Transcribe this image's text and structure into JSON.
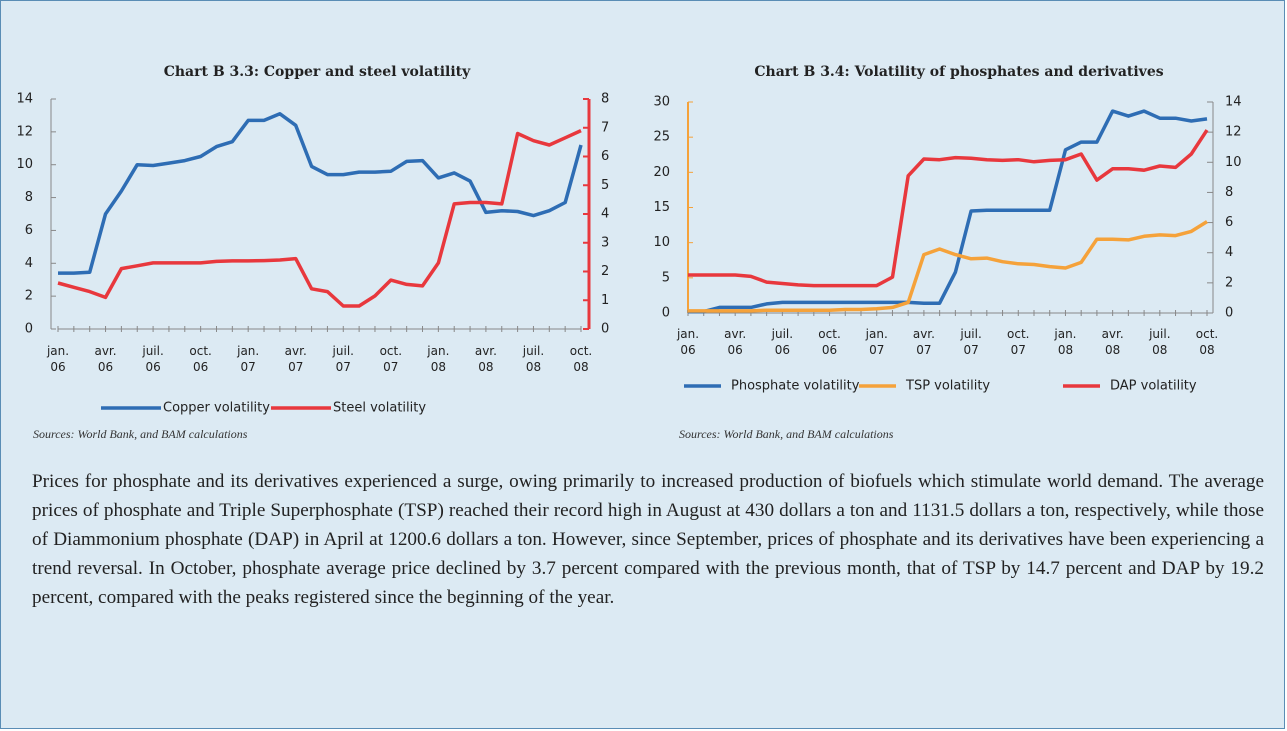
{
  "chart_data": [
    {
      "type": "line",
      "title": "Chart B 3.3: Copper and steel volatility",
      "categories": [
        "jan. 06",
        null,
        null,
        "avr. 06",
        null,
        null,
        "juil. 06",
        null,
        null,
        "oct. 06",
        null,
        null,
        "jan. 07",
        null,
        null,
        "avr. 07",
        null,
        null,
        "juil. 07",
        null,
        null,
        "oct. 07",
        null,
        null,
        "jan. 08",
        null,
        null,
        "avr. 08",
        null,
        null,
        "juil. 08",
        null,
        null,
        "oct. 08"
      ],
      "series": [
        {
          "name": "Copper volatility",
          "color": "#2e6db4",
          "values": [
            3.4,
            3.4,
            3.45,
            7.0,
            8.4,
            10.0,
            9.95,
            10.1,
            10.25,
            10.5,
            11.1,
            11.4,
            12.7,
            12.7,
            13.1,
            12.4,
            9.9,
            9.4,
            9.4,
            9.55,
            9.55,
            9.6,
            10.2,
            10.25,
            9.2,
            9.5,
            9.0,
            7.1,
            7.2,
            7.15,
            6.9,
            7.2,
            7.7,
            11.2
          ]
        },
        {
          "name": "Steel volatility",
          "color": "#e8383d",
          "axis": "y2",
          "values": [
            1.6,
            1.45,
            1.3,
            1.1,
            2.1,
            2.2,
            2.3,
            2.3,
            2.3,
            2.3,
            2.35,
            2.37,
            2.37,
            2.38,
            2.4,
            2.45,
            1.4,
            1.3,
            0.8,
            0.8,
            1.15,
            1.7,
            1.55,
            1.5,
            2.3,
            4.35,
            4.4,
            4.4,
            4.35,
            6.8,
            6.55,
            6.4,
            6.65,
            6.9
          ]
        }
      ],
      "ylim": [
        0,
        14
      ],
      "yticks": [
        0,
        2,
        4,
        6,
        8,
        10,
        12,
        14
      ],
      "y2lim": [
        0,
        8
      ],
      "y2ticks": [
        0,
        1,
        2,
        3,
        4,
        5,
        6,
        7,
        8
      ],
      "y2color": "#e8383d",
      "source": "Sources: World Bank, and BAM calculations"
    },
    {
      "type": "line",
      "title": "Chart B 3.4: Volatility of phosphates and derivatives",
      "categories": [
        "jan. 06",
        null,
        null,
        "avr. 06",
        null,
        null,
        "juil. 06",
        null,
        null,
        "oct. 06",
        null,
        null,
        "jan. 07",
        null,
        null,
        "avr. 07",
        null,
        null,
        "juil. 07",
        null,
        null,
        "oct. 07",
        null,
        null,
        "jan. 08",
        null,
        null,
        "avr. 08",
        null,
        null,
        "juil. 08",
        null,
        null,
        "oct. 08"
      ],
      "series": [
        {
          "name": "Phosphate volatility",
          "color": "#2e6db4",
          "values": [
            0.2,
            0.2,
            0.8,
            0.8,
            0.8,
            1.3,
            1.5,
            1.5,
            1.5,
            1.5,
            1.5,
            1.5,
            1.5,
            1.5,
            1.5,
            1.4,
            1.4,
            5.8,
            14.5,
            14.6,
            14.6,
            14.6,
            14.6,
            14.6,
            23.2,
            24.3,
            24.3,
            28.7,
            28.0,
            28.7,
            27.7,
            27.7,
            27.3,
            27.6
          ]
        },
        {
          "name": "TSP volatility",
          "color": "#f5a23a",
          "values": [
            0.3,
            0.3,
            0.3,
            0.3,
            0.3,
            0.4,
            0.4,
            0.4,
            0.4,
            0.4,
            0.5,
            0.5,
            0.6,
            0.8,
            1.5,
            8.3,
            9.1,
            8.3,
            7.7,
            7.8,
            7.3,
            7.0,
            6.9,
            6.6,
            6.4,
            7.2,
            10.5,
            10.5,
            10.4,
            10.9,
            11.1,
            11.0,
            11.6,
            13.0
          ]
        },
        {
          "name": "DAP volatility",
          "color": "#e8383d",
          "values": [
            5.4,
            5.4,
            5.4,
            5.4,
            5.2,
            4.4,
            4.2,
            4.0,
            3.9,
            3.9,
            3.9,
            3.9,
            3.9,
            5.1,
            19.5,
            21.9,
            21.8,
            22.1,
            22.0,
            21.8,
            21.7,
            21.8,
            21.5,
            21.7,
            21.8,
            22.6,
            18.9,
            20.5,
            20.5,
            20.3,
            20.9,
            20.7,
            22.6,
            26.0
          ]
        }
      ],
      "ylim": [
        0,
        30
      ],
      "yticks": [
        0,
        5,
        10,
        15,
        20,
        25,
        30
      ],
      "ycolor": "#f5a23a",
      "y2lim": [
        0,
        14
      ],
      "y2ticks": [
        0,
        2,
        4,
        6,
        8,
        10,
        12,
        14
      ],
      "source": "Sources: World Bank, and BAM calculations"
    }
  ],
  "text": "Prices for phosphate and its derivatives experienced a surge, owing primarily to increased production of biofuels which stimulate world demand. The average prices of phosphate and Triple Superphosphate (TSP) reached their record high in August at 430 dollars a ton and 1131.5 dollars a ton, respectively, while those of Diammonium phosphate (DAP) in April at 1200.6 dollars a ton. However, since September, prices of phosphate and its derivatives have been experiencing a trend reversal. In October, phosphate average price declined by 3.7 percent compared with the previous month, that of TSP by 14.7 percent and DAP by 19.2 percent, compared with the peaks registered since the beginning of the year."
}
